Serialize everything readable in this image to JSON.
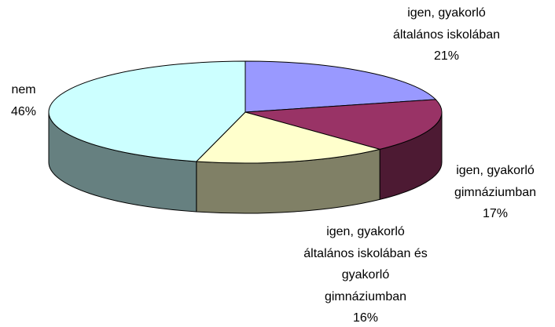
{
  "chart_data": {
    "type": "pie3d",
    "categories": [
      [
        "igen, gyakorló",
        "általános iskolában"
      ],
      [
        "igen, gyakorló",
        "gimnáziumban"
      ],
      [
        "igen, gyakorló",
        "általános iskolában és",
        "gyakorló",
        "gimnáziumban"
      ],
      [
        "nem"
      ]
    ],
    "values": [
      21,
      17,
      16,
      46
    ],
    "value_labels": [
      "21%",
      "17%",
      "16%",
      "46%"
    ],
    "colors": [
      "#9999ff",
      "#993366",
      "#ffffcc",
      "#ccffff"
    ]
  }
}
